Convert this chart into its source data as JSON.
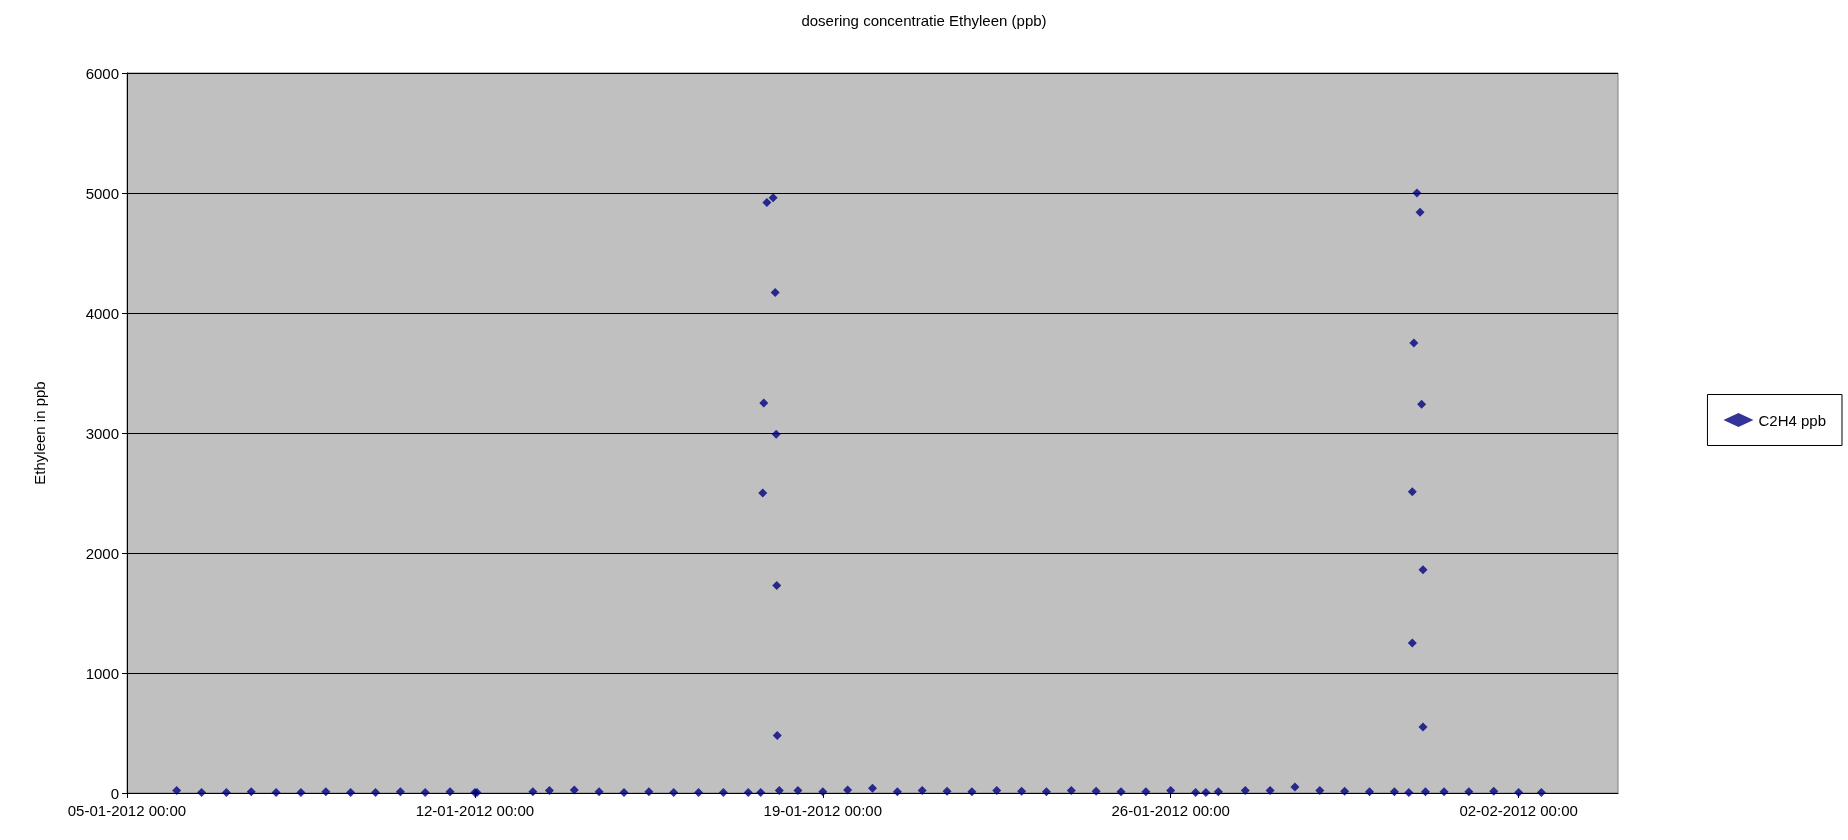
{
  "chart_data": {
    "type": "scatter",
    "title": "dosering concentratie Ethyleen (ppb)",
    "ylabel": "Ethyleen in ppb",
    "xlim": [
      "2012-01-05T00:00",
      "2012-02-04T00:00"
    ],
    "xticks": [
      {
        "value": "2012-01-05T00:00",
        "label": "05-01-2012 00:00"
      },
      {
        "value": "2012-01-12T00:00",
        "label": "12-01-2012 00:00"
      },
      {
        "value": "2012-01-19T00:00",
        "label": "19-01-2012 00:00"
      },
      {
        "value": "2012-01-26T00:00",
        "label": "26-01-2012 00:00"
      },
      {
        "value": "2012-02-02T00:00",
        "label": "02-02-2012 00:00"
      }
    ],
    "ylim": [
      0,
      6000
    ],
    "yticks": [
      0,
      1000,
      2000,
      3000,
      4000,
      5000,
      6000
    ],
    "grid": "y",
    "legend": "right",
    "marker": "diamond",
    "series": [
      {
        "name": "C2H4 ppb",
        "color": "#000080",
        "x": [
          "2012-01-06T00:00",
          "2012-01-06T12:00",
          "2012-01-07T00:00",
          "2012-01-07T12:00",
          "2012-01-08T00:00",
          "2012-01-08T12:00",
          "2012-01-09T00:00",
          "2012-01-09T12:00",
          "2012-01-10T00:00",
          "2012-01-10T12:00",
          "2012-01-11T00:00",
          "2012-01-11T12:00",
          "2012-01-12T00:00",
          "2012-01-12T01:00",
          "2012-01-13T04:00",
          "2012-01-13T12:00",
          "2012-01-14T00:00",
          "2012-01-14T12:00",
          "2012-01-15T00:00",
          "2012-01-15T12:00",
          "2012-01-16T00:00",
          "2012-01-16T12:00",
          "2012-01-17T00:00",
          "2012-01-17T12:00",
          "2012-01-17T18:00",
          "2012-01-17T19:00",
          "2012-01-17T19:30",
          "2012-01-17T21:00",
          "2012-01-18T00:00",
          "2012-01-18T01:00",
          "2012-01-18T01:30",
          "2012-01-18T01:45",
          "2012-01-18T02:00",
          "2012-01-18T03:00",
          "2012-01-18T12:00",
          "2012-01-19T00:00",
          "2012-01-19T12:00",
          "2012-01-20T00:00",
          "2012-01-20T12:00",
          "2012-01-21T00:00",
          "2012-01-21T12:00",
          "2012-01-22T00:00",
          "2012-01-22T12:00",
          "2012-01-23T00:00",
          "2012-01-23T12:00",
          "2012-01-24T00:00",
          "2012-01-24T12:00",
          "2012-01-25T00:00",
          "2012-01-25T12:00",
          "2012-01-26T00:00",
          "2012-01-26T12:00",
          "2012-01-26T17:00",
          "2012-01-26T23:00",
          "2012-01-27T12:00",
          "2012-01-28T00:00",
          "2012-01-28T12:00",
          "2012-01-29T00:00",
          "2012-01-29T12:00",
          "2012-01-30T00:00",
          "2012-01-30T12:00",
          "2012-01-30T19:00",
          "2012-01-30T20:40",
          "2012-01-30T21:25",
          "2012-01-30T20:40",
          "2012-01-30T22:55",
          "2012-01-31T00:25",
          "2012-01-31T01:10",
          "2012-01-31T01:50",
          "2012-01-31T01:50",
          "2012-01-31T03:00",
          "2012-01-31T12:00",
          "2012-02-01T00:00",
          "2012-02-01T12:00",
          "2012-02-02T00:00",
          "2012-02-02T11:00"
        ],
        "values": [
          20,
          5,
          5,
          10,
          5,
          5,
          10,
          5,
          5,
          10,
          5,
          10,
          5,
          5,
          10,
          20,
          25,
          10,
          5,
          10,
          5,
          5,
          5,
          5,
          5,
          2500,
          3250,
          4920,
          4960,
          4170,
          2990,
          1730,
          480,
          20,
          20,
          10,
          25,
          40,
          10,
          20,
          15,
          10,
          20,
          15,
          10,
          20,
          15,
          10,
          10,
          20,
          5,
          5,
          10,
          20,
          20,
          50,
          20,
          15,
          10,
          10,
          5,
          2510,
          3750,
          1250,
          5000,
          4840,
          3240,
          1860,
          550,
          10,
          10,
          10,
          15,
          5,
          5
        ]
      }
    ]
  }
}
